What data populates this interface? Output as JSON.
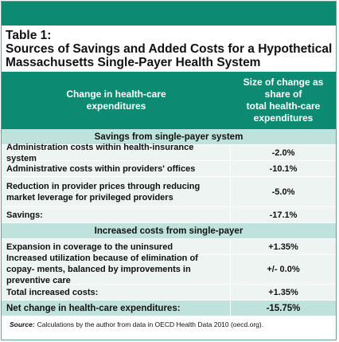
{
  "table": {
    "title_line1": "Table 1:",
    "title_line2": "Sources of Savings and Added Costs for a Hypothetical",
    "title_line3": "Massachusetts Single-Payer Health System",
    "header_col1": "Change in health-care\nexpenditures",
    "header_col2": "Size of change as\nshare of\ntotal health-care\nexpenditures",
    "section_savings": "Savings from single-payer system",
    "savings_rows": [
      {
        "label": "Administration costs within health-insurance system",
        "value": "-2.0%"
      },
      {
        "label": "Administrative costs within providers' offices",
        "value": "-10.1%"
      },
      {
        "label": "Reduction in provider prices through reducing market leverage for privileged providers",
        "value": "-5.0%"
      },
      {
        "label": "Savings:",
        "value": "-17.1%"
      }
    ],
    "section_costs": "Increased costs from single-payer",
    "cost_rows": [
      {
        "label": "Expansion in coverage to the uninsured",
        "value": "+1.35%"
      },
      {
        "label": "Increased utilization because of elimination of copay- ments, balanced by improvements in preventive care",
        "value": "+/- 0.0%"
      },
      {
        "label": "Total increased costs:",
        "value": "+1.35%"
      }
    ],
    "net_row": {
      "label": "Net change in health-care expenditures:",
      "value": "-15.75%"
    },
    "source_label": "Source:",
    "source_text": "Calculations by the author from data in OECD Health Data 2010 (oecd.org)."
  },
  "colors": {
    "header_green": "#0c8a72",
    "section_band": "#bfe3dc",
    "row_band": "#edf4f2"
  }
}
